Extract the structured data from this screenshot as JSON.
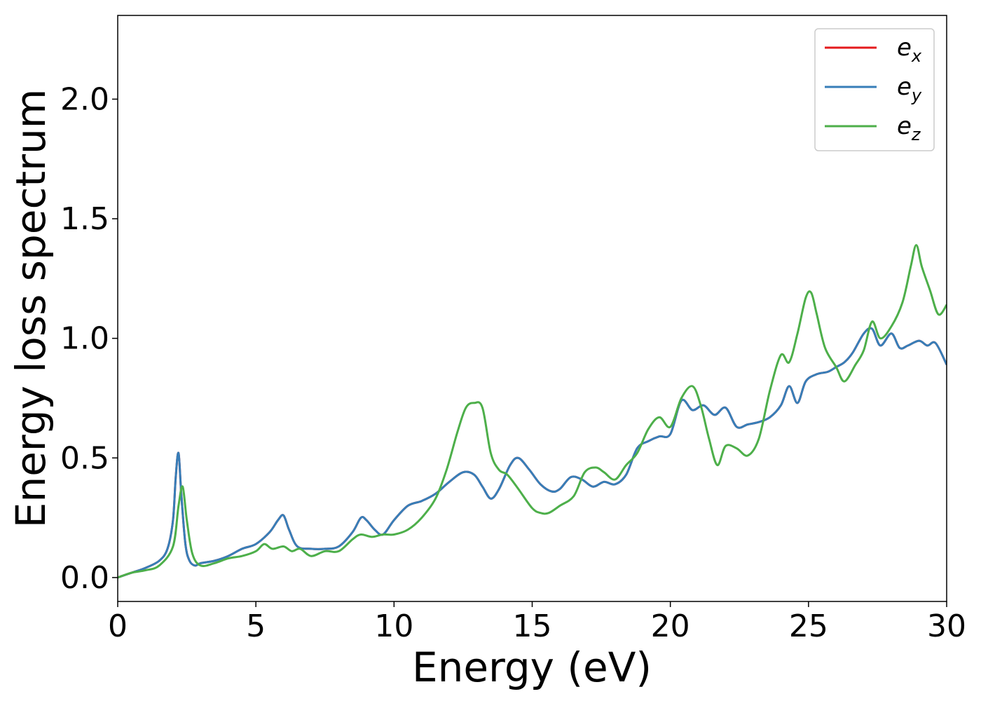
{
  "chart_data": {
    "type": "line",
    "title": "",
    "xlabel": "Energy (eV)",
    "ylabel": "Energy loss spectrum",
    "xlim": [
      0,
      30
    ],
    "ylim": [
      -0.1,
      2.35
    ],
    "xticks": [
      0,
      5,
      10,
      15,
      20,
      25,
      30
    ],
    "xtick_labels": [
      "0",
      "5",
      "10",
      "15",
      "20",
      "25",
      "30"
    ],
    "yticks": [
      0.0,
      0.5,
      1.0,
      1.5,
      2.0
    ],
    "ytick_labels": [
      "0.0",
      "0.5",
      "1.0",
      "1.5",
      "2.0"
    ],
    "grid": false,
    "legend_position": "top-right",
    "series": [
      {
        "name": "ex",
        "legend_base": "e",
        "legend_sub": "x",
        "color": "#e41a1c",
        "x": [
          0,
          0.5,
          1,
          1.5,
          1.8,
          2,
          2.1,
          2.2,
          2.3,
          2.45,
          2.6,
          2.8,
          3,
          3.5,
          4,
          4.5,
          5,
          5.5,
          5.8,
          6,
          6.2,
          6.5,
          7,
          7.5,
          8,
          8.5,
          8.8,
          9,
          9.3,
          9.6,
          10,
          10.5,
          11,
          11.5,
          12,
          12.5,
          12.9,
          13.2,
          13.5,
          13.8,
          14.2,
          14.5,
          14.9,
          15.3,
          15.7,
          16,
          16.4,
          16.8,
          17.2,
          17.6,
          18,
          18.4,
          18.8,
          19.2,
          19.6,
          20,
          20.4,
          20.8,
          21.2,
          21.6,
          22,
          22.4,
          22.8,
          23.2,
          23.6,
          24,
          24.3,
          24.6,
          24.9,
          25.3,
          25.7,
          26,
          26.3,
          26.6,
          27,
          27.3,
          27.6,
          28,
          28.3,
          28.6,
          29,
          29.3,
          29.6,
          30
        ],
        "y": [
          0,
          0.02,
          0.04,
          0.07,
          0.12,
          0.24,
          0.42,
          0.52,
          0.35,
          0.14,
          0.07,
          0.05,
          0.06,
          0.07,
          0.09,
          0.12,
          0.14,
          0.19,
          0.24,
          0.26,
          0.2,
          0.13,
          0.12,
          0.12,
          0.13,
          0.19,
          0.25,
          0.24,
          0.2,
          0.18,
          0.24,
          0.3,
          0.32,
          0.35,
          0.4,
          0.44,
          0.43,
          0.38,
          0.33,
          0.37,
          0.47,
          0.5,
          0.45,
          0.39,
          0.36,
          0.37,
          0.42,
          0.41,
          0.38,
          0.4,
          0.39,
          0.43,
          0.54,
          0.57,
          0.59,
          0.6,
          0.74,
          0.7,
          0.72,
          0.68,
          0.71,
          0.63,
          0.64,
          0.65,
          0.67,
          0.72,
          0.8,
          0.73,
          0.82,
          0.85,
          0.86,
          0.88,
          0.9,
          0.94,
          1.02,
          1.04,
          0.97,
          1.02,
          0.96,
          0.97,
          0.99,
          0.97,
          0.98,
          0.89
        ]
      },
      {
        "name": "ey",
        "legend_base": "e",
        "legend_sub": "y",
        "color": "#377eb8",
        "x": [
          0,
          0.5,
          1,
          1.5,
          1.8,
          2,
          2.1,
          2.2,
          2.3,
          2.45,
          2.6,
          2.8,
          3,
          3.5,
          4,
          4.5,
          5,
          5.5,
          5.8,
          6,
          6.2,
          6.5,
          7,
          7.5,
          8,
          8.5,
          8.8,
          9,
          9.3,
          9.6,
          10,
          10.5,
          11,
          11.5,
          12,
          12.5,
          12.9,
          13.2,
          13.5,
          13.8,
          14.2,
          14.5,
          14.9,
          15.3,
          15.7,
          16,
          16.4,
          16.8,
          17.2,
          17.6,
          18,
          18.4,
          18.8,
          19.2,
          19.6,
          20,
          20.4,
          20.8,
          21.2,
          21.6,
          22,
          22.4,
          22.8,
          23.2,
          23.6,
          24,
          24.3,
          24.6,
          24.9,
          25.3,
          25.7,
          26,
          26.3,
          26.6,
          27,
          27.3,
          27.6,
          28,
          28.3,
          28.6,
          29,
          29.3,
          29.6,
          30
        ],
        "y": [
          0,
          0.02,
          0.04,
          0.07,
          0.12,
          0.24,
          0.42,
          0.52,
          0.35,
          0.14,
          0.07,
          0.05,
          0.06,
          0.07,
          0.09,
          0.12,
          0.14,
          0.19,
          0.24,
          0.26,
          0.2,
          0.13,
          0.12,
          0.12,
          0.13,
          0.19,
          0.25,
          0.24,
          0.2,
          0.18,
          0.24,
          0.3,
          0.32,
          0.35,
          0.4,
          0.44,
          0.43,
          0.38,
          0.33,
          0.37,
          0.47,
          0.5,
          0.45,
          0.39,
          0.36,
          0.37,
          0.42,
          0.41,
          0.38,
          0.4,
          0.39,
          0.43,
          0.54,
          0.57,
          0.59,
          0.6,
          0.74,
          0.7,
          0.72,
          0.68,
          0.71,
          0.63,
          0.64,
          0.65,
          0.67,
          0.72,
          0.8,
          0.73,
          0.82,
          0.85,
          0.86,
          0.88,
          0.9,
          0.94,
          1.02,
          1.04,
          0.97,
          1.02,
          0.96,
          0.97,
          0.99,
          0.97,
          0.98,
          0.89
        ]
      },
      {
        "name": "ez",
        "legend_base": "e",
        "legend_sub": "z",
        "color": "#4daf4a",
        "x": [
          0,
          0.5,
          1,
          1.5,
          2,
          2.2,
          2.35,
          2.5,
          2.7,
          3,
          3.5,
          4,
          4.5,
          5,
          5.3,
          5.6,
          6,
          6.3,
          6.6,
          7,
          7.5,
          8,
          8.5,
          8.8,
          9.2,
          9.6,
          10,
          10.5,
          11,
          11.5,
          11.9,
          12.3,
          12.6,
          12.9,
          13.2,
          13.5,
          13.8,
          14.1,
          14.5,
          15,
          15.3,
          15.6,
          16,
          16.5,
          16.9,
          17.3,
          17.6,
          18,
          18.4,
          18.8,
          19.2,
          19.6,
          20,
          20.4,
          20.8,
          21.1,
          21.4,
          21.7,
          22,
          22.4,
          22.8,
          23.2,
          23.6,
          24,
          24.3,
          24.6,
          24.9,
          25.1,
          25.3,
          25.6,
          26,
          26.3,
          26.7,
          27,
          27.3,
          27.6,
          28,
          28.4,
          28.7,
          28.9,
          29.1,
          29.4,
          29.7,
          30
        ],
        "y": [
          0,
          0.02,
          0.03,
          0.05,
          0.13,
          0.3,
          0.38,
          0.24,
          0.1,
          0.05,
          0.06,
          0.08,
          0.09,
          0.11,
          0.14,
          0.12,
          0.13,
          0.11,
          0.12,
          0.09,
          0.11,
          0.11,
          0.16,
          0.18,
          0.17,
          0.18,
          0.18,
          0.2,
          0.25,
          0.33,
          0.45,
          0.61,
          0.71,
          0.73,
          0.71,
          0.52,
          0.45,
          0.43,
          0.37,
          0.29,
          0.27,
          0.27,
          0.3,
          0.34,
          0.44,
          0.46,
          0.44,
          0.41,
          0.47,
          0.52,
          0.62,
          0.67,
          0.63,
          0.75,
          0.8,
          0.72,
          0.58,
          0.47,
          0.55,
          0.54,
          0.51,
          0.58,
          0.78,
          0.93,
          0.9,
          1.02,
          1.17,
          1.19,
          1.1,
          0.96,
          0.88,
          0.82,
          0.89,
          0.95,
          1.07,
          1.0,
          1.05,
          1.15,
          1.3,
          1.39,
          1.3,
          1.2,
          1.1,
          1.14
        ]
      }
    ]
  }
}
